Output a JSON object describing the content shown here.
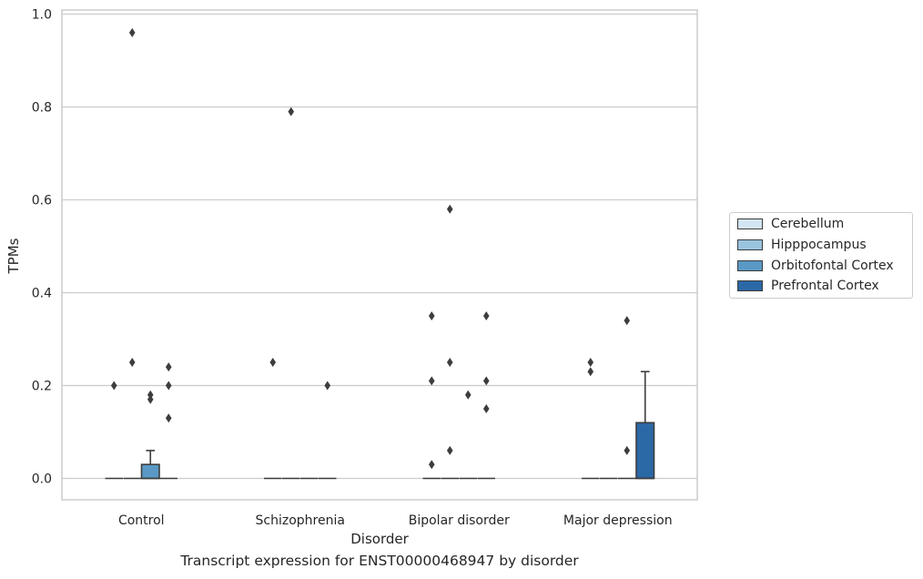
{
  "chart_data": {
    "type": "box",
    "title": "",
    "caption": "Transcript expression for ENST00000468947 by disorder",
    "xlabel": "Disorder",
    "ylabel": "TPMs",
    "ylim": [
      -0.045,
      1.01
    ],
    "yticks": [
      "0.0",
      "0.2",
      "0.4",
      "0.6",
      "0.8",
      "1.0"
    ],
    "grid": "horizontal",
    "legend_position": "right",
    "categories": [
      "Control",
      "Schizophrenia",
      "Bipolar disorder",
      "Major depression"
    ],
    "series": [
      {
        "name": "Cerebellum",
        "color": "#d3e4f3"
      },
      {
        "name": "Hipppocampus",
        "color": "#9ac3de"
      },
      {
        "name": "Orbitofontal Cortex",
        "color": "#5a99c6"
      },
      {
        "name": "Prefrontal Cortex",
        "color": "#2b68a6"
      }
    ],
    "boxes": [
      {
        "category": "Control",
        "series": "Cerebellum",
        "q1": 0,
        "median": 0,
        "q3": 0,
        "whisker_high": 0,
        "outliers": [
          0.2
        ]
      },
      {
        "category": "Control",
        "series": "Hipppocampus",
        "q1": 0,
        "median": 0,
        "q3": 0,
        "whisker_high": 0,
        "outliers": [
          0.96,
          0.25
        ]
      },
      {
        "category": "Control",
        "series": "Orbitofontal Cortex",
        "q1": 0,
        "median": 0,
        "q3": 0.03,
        "whisker_high": 0.06,
        "outliers": [
          0.18,
          0.17
        ]
      },
      {
        "category": "Control",
        "series": "Prefrontal Cortex",
        "q1": 0,
        "median": 0,
        "q3": 0,
        "whisker_high": 0,
        "outliers": [
          0.24,
          0.2,
          0.13
        ]
      },
      {
        "category": "Schizophrenia",
        "series": "Cerebellum",
        "q1": 0,
        "median": 0,
        "q3": 0,
        "whisker_high": 0,
        "outliers": [
          0.25
        ]
      },
      {
        "category": "Schizophrenia",
        "series": "Hipppocampus",
        "q1": 0,
        "median": 0,
        "q3": 0,
        "whisker_high": 0,
        "outliers": [
          0.79
        ]
      },
      {
        "category": "Schizophrenia",
        "series": "Orbitofontal Cortex",
        "q1": 0,
        "median": 0,
        "q3": 0,
        "whisker_high": 0,
        "outliers": []
      },
      {
        "category": "Schizophrenia",
        "series": "Prefrontal Cortex",
        "q1": 0,
        "median": 0,
        "q3": 0,
        "whisker_high": 0,
        "outliers": [
          0.2
        ]
      },
      {
        "category": "Bipolar disorder",
        "series": "Cerebellum",
        "q1": 0,
        "median": 0,
        "q3": 0,
        "whisker_high": 0,
        "outliers": [
          0.35,
          0.21,
          0.03
        ]
      },
      {
        "category": "Bipolar disorder",
        "series": "Hipppocampus",
        "q1": 0,
        "median": 0,
        "q3": 0,
        "whisker_high": 0,
        "outliers": [
          0.58,
          0.25,
          0.06
        ]
      },
      {
        "category": "Bipolar disorder",
        "series": "Orbitofontal Cortex",
        "q1": 0,
        "median": 0,
        "q3": 0,
        "whisker_high": 0,
        "outliers": [
          0.18
        ]
      },
      {
        "category": "Bipolar disorder",
        "series": "Prefrontal Cortex",
        "q1": 0,
        "median": 0,
        "q3": 0,
        "whisker_high": 0,
        "outliers": [
          0.35,
          0.21,
          0.15
        ]
      },
      {
        "category": "Major depression",
        "series": "Cerebellum",
        "q1": 0,
        "median": 0,
        "q3": 0,
        "whisker_high": 0,
        "outliers": [
          0.25,
          0.23
        ]
      },
      {
        "category": "Major depression",
        "series": "Hipppocampus",
        "q1": 0,
        "median": 0,
        "q3": 0,
        "whisker_high": 0,
        "outliers": []
      },
      {
        "category": "Major depression",
        "series": "Orbitofontal Cortex",
        "q1": 0,
        "median": 0,
        "q3": 0,
        "whisker_high": 0,
        "outliers": [
          0.34,
          0.06
        ]
      },
      {
        "category": "Major depression",
        "series": "Prefrontal Cortex",
        "q1": 0,
        "median": 0,
        "q3": 0.12,
        "whisker_high": 0.23,
        "outliers": []
      }
    ]
  }
}
